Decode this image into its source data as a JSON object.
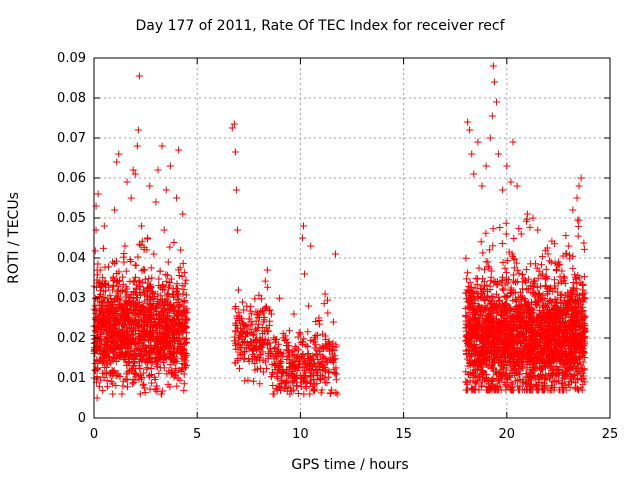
{
  "chart_data": {
    "type": "scatter",
    "title": "Day 177 of 2011, Rate Of TEC Index for receiver recf",
    "xlabel": "GPS time / hours",
    "ylabel": "ROTI / TECUs",
    "xlim": [
      0,
      25
    ],
    "ylim": [
      0,
      0.09
    ],
    "xticks": [
      "0",
      "5",
      "10",
      "15",
      "20",
      "25"
    ],
    "yticks": [
      "0",
      "0.01",
      "0.02",
      "0.03",
      "0.04",
      "0.05",
      "0.06",
      "0.07",
      "0.08",
      "0.09"
    ],
    "grid": true,
    "marker": "+",
    "color": "#ff0000",
    "series": [
      {
        "points": [
          [
            0.05,
            0.012
          ],
          [
            0.1,
            0.047
          ],
          [
            0.1,
            0.053
          ],
          [
            0.15,
            0.005
          ],
          [
            0.2,
            0.056
          ],
          [
            0.3,
            0.037
          ],
          [
            0.4,
            0.022
          ],
          [
            0.5,
            0.048
          ],
          [
            0.6,
            0.011
          ],
          [
            0.7,
            0.015
          ],
          [
            0.8,
            0.026
          ],
          [
            0.9,
            0.039
          ],
          [
            1.0,
            0.052
          ],
          [
            1.1,
            0.064
          ],
          [
            1.2,
            0.066
          ],
          [
            1.3,
            0.03
          ],
          [
            1.4,
            0.008
          ],
          [
            1.5,
            0.043
          ],
          [
            1.6,
            0.059
          ],
          [
            1.7,
            0.021
          ],
          [
            1.8,
            0.055
          ],
          [
            1.9,
            0.062
          ],
          [
            2.0,
            0.061
          ],
          [
            2.1,
            0.068
          ],
          [
            2.15,
            0.072
          ],
          [
            2.2,
            0.0855
          ],
          [
            2.3,
            0.048
          ],
          [
            2.4,
            0.032
          ],
          [
            2.5,
            0.014
          ],
          [
            2.6,
            0.045
          ],
          [
            2.7,
            0.058
          ],
          [
            2.8,
            0.035
          ],
          [
            2.9,
            0.041
          ],
          [
            3.0,
            0.054
          ],
          [
            3.1,
            0.062
          ],
          [
            3.2,
            0.026
          ],
          [
            3.3,
            0.068
          ],
          [
            3.4,
            0.047
          ],
          [
            3.5,
            0.057
          ],
          [
            3.6,
            0.039
          ],
          [
            3.7,
            0.063
          ],
          [
            3.8,
            0.031
          ],
          [
            3.9,
            0.018
          ],
          [
            4.0,
            0.055
          ],
          [
            4.1,
            0.067
          ],
          [
            4.2,
            0.042
          ],
          [
            4.3,
            0.051
          ],
          [
            4.4,
            0.027
          ],
          [
            4.45,
            0.019
          ],
          [
            6.7,
            0.0725
          ],
          [
            6.8,
            0.0735
          ],
          [
            6.85,
            0.0665
          ],
          [
            6.9,
            0.057
          ],
          [
            6.95,
            0.047
          ],
          [
            7.0,
            0.032
          ],
          [
            7.2,
            0.029
          ],
          [
            7.4,
            0.021
          ],
          [
            7.6,
            0.018
          ],
          [
            7.8,
            0.012
          ],
          [
            8.0,
            0.015
          ],
          [
            8.2,
            0.024
          ],
          [
            8.4,
            0.037
          ],
          [
            8.6,
            0.026
          ],
          [
            8.8,
            0.019
          ],
          [
            9.0,
            0.013
          ],
          [
            9.2,
            0.009
          ],
          [
            9.4,
            0.017
          ],
          [
            9.6,
            0.011
          ],
          [
            9.8,
            0.008
          ],
          [
            10.0,
            0.021
          ],
          [
            10.1,
            0.045
          ],
          [
            10.15,
            0.048
          ],
          [
            10.2,
            0.036
          ],
          [
            10.4,
            0.028
          ],
          [
            10.5,
            0.043
          ],
          [
            10.7,
            0.019
          ],
          [
            10.9,
            0.025
          ],
          [
            11.0,
            0.014
          ],
          [
            11.2,
            0.031
          ],
          [
            11.4,
            0.018
          ],
          [
            11.6,
            0.024
          ],
          [
            11.7,
            0.041
          ],
          [
            11.75,
            0.011
          ],
          [
            11.5,
            0.007
          ],
          [
            18.1,
            0.074
          ],
          [
            18.2,
            0.072
          ],
          [
            18.3,
            0.066
          ],
          [
            18.4,
            0.061
          ],
          [
            18.6,
            0.069
          ],
          [
            18.8,
            0.058
          ],
          [
            19.0,
            0.063
          ],
          [
            19.2,
            0.07
          ],
          [
            19.3,
            0.0755
          ],
          [
            19.35,
            0.088
          ],
          [
            19.4,
            0.084
          ],
          [
            19.5,
            0.079
          ],
          [
            19.6,
            0.066
          ],
          [
            19.8,
            0.057
          ],
          [
            20.0,
            0.063
          ],
          [
            20.2,
            0.059
          ],
          [
            20.3,
            0.069
          ],
          [
            20.5,
            0.058
          ],
          [
            20.7,
            0.046
          ],
          [
            21.0,
            0.051
          ],
          [
            21.5,
            0.047
          ],
          [
            22.0,
            0.041
          ],
          [
            22.5,
            0.039
          ],
          [
            23.0,
            0.043
          ],
          [
            23.2,
            0.052
          ],
          [
            23.4,
            0.055
          ],
          [
            23.5,
            0.058
          ],
          [
            23.6,
            0.06
          ],
          [
            23.7,
            0.032
          ],
          [
            23.7,
            0.014
          ]
        ]
      }
    ],
    "dense_clusters": [
      {
        "x_range": [
          0.0,
          4.5
        ],
        "y_range": [
          0.006,
          0.045
        ],
        "y_center": 0.022,
        "n": 1400
      },
      {
        "x_range": [
          6.8,
          8.6
        ],
        "y_range": [
          0.008,
          0.035
        ],
        "y_center": 0.02,
        "n": 180
      },
      {
        "x_range": [
          8.6,
          11.8
        ],
        "y_range": [
          0.006,
          0.03
        ],
        "y_center": 0.013,
        "n": 320
      },
      {
        "x_range": [
          18.0,
          23.8
        ],
        "y_range": [
          0.007,
          0.05
        ],
        "y_center": 0.02,
        "n": 2400
      }
    ]
  }
}
